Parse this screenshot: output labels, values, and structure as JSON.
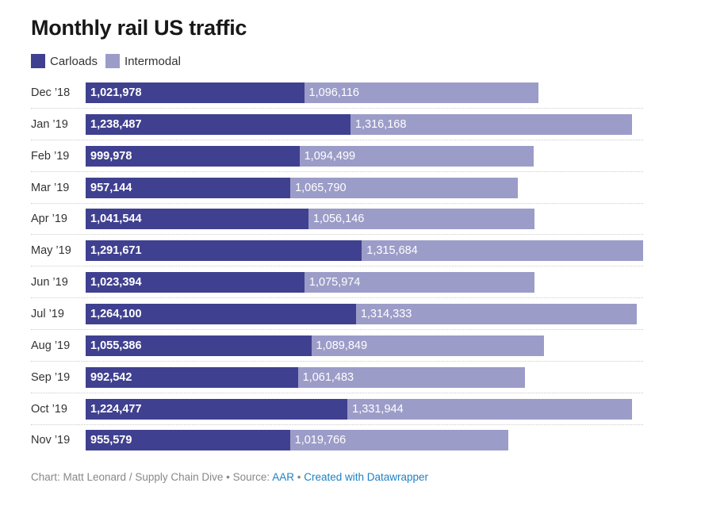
{
  "title": "Monthly rail US traffic",
  "colors": {
    "Carloads": "#404090",
    "Intermodal": "#9c9cc9"
  },
  "chart_data": {
    "type": "bar",
    "stacked": true,
    "orientation": "horizontal",
    "title": "Monthly rail US traffic",
    "categories": [
      "Dec ’18",
      "Jan ’19",
      "Feb ’19",
      "Mar ’19",
      "Apr ’19",
      "May ’19",
      "Jun ’19",
      "Jul ’19",
      "Aug ’19",
      "Sep ’19",
      "Oct ’19",
      "Nov ’19"
    ],
    "series": [
      {
        "name": "Carloads",
        "values": [
          1021978,
          1238487,
          999978,
          957144,
          1041544,
          1291671,
          1023394,
          1264100,
          1055386,
          992542,
          1224477,
          955579
        ]
      },
      {
        "name": "Intermodal",
        "values": [
          1096116,
          1316168,
          1094499,
          1065790,
          1056146,
          1315684,
          1075974,
          1314333,
          1089849,
          1061483,
          1331944,
          1019766
        ]
      }
    ],
    "legend": "top-left",
    "grid": false
  },
  "footer": {
    "credit": "Chart: Matt Leonard / Supply Chain Dive",
    "source_label": "Source:",
    "source": "AAR",
    "created": "Created with Datawrapper",
    "sep": "•"
  }
}
